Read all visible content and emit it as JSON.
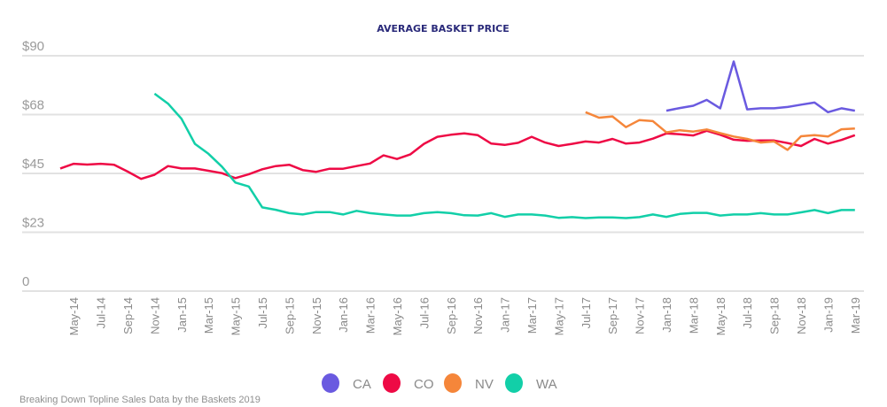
{
  "chart_data": {
    "type": "line",
    "title": "AVERAGE BASKET PRICE",
    "xlabel": "",
    "ylabel": "",
    "ylim": [
      0,
      90
    ],
    "yticks": [
      0,
      22.5,
      45,
      67.5,
      90
    ],
    "ytick_labels": [
      "0",
      "$23",
      "$45",
      "$68",
      "$90"
    ],
    "grid": true,
    "legend_placement": "bottom",
    "x": [
      "Apr-14",
      "May-14",
      "Jun-14",
      "Jul-14",
      "Aug-14",
      "Sep-14",
      "Oct-14",
      "Nov-14",
      "Dec-14",
      "Jan-15",
      "Feb-15",
      "Mar-15",
      "Apr-15",
      "May-15",
      "Jun-15",
      "Jul-15",
      "Aug-15",
      "Sep-15",
      "Oct-15",
      "Nov-15",
      "Dec-15",
      "Jan-16",
      "Feb-16",
      "Mar-16",
      "Apr-16",
      "May-16",
      "Jun-16",
      "Jul-16",
      "Aug-16",
      "Sep-16",
      "Oct-16",
      "Nov-16",
      "Dec-16",
      "Jan-17",
      "Feb-17",
      "Mar-17",
      "Apr-17",
      "May-17",
      "Jun-17",
      "Jul-17",
      "Aug-17",
      "Sep-17",
      "Oct-17",
      "Nov-17",
      "Dec-17",
      "Jan-18",
      "Feb-18",
      "Mar-18",
      "Apr-18",
      "May-18",
      "Jun-18",
      "Jul-18",
      "Aug-18",
      "Sep-18",
      "Oct-18",
      "Nov-18",
      "Dec-18",
      "Jan-19",
      "Feb-19",
      "Mar-19"
    ],
    "xtick_labels": [
      "May-14",
      "Jul-14",
      "Sep-14",
      "Nov-14",
      "Jan-15",
      "Mar-15",
      "May-15",
      "Jul-15",
      "Sep-15",
      "Nov-15",
      "Jan-16",
      "Mar-16",
      "May-16",
      "Jul-16",
      "Sep-16",
      "Nov-16",
      "Jan-17",
      "Mar-17",
      "May-17",
      "Jul-17",
      "Sep-17",
      "Nov-17",
      "Jan-18",
      "Mar-18",
      "May-18",
      "Jul-18",
      "Sep-18",
      "Nov-18",
      "Jan-19",
      "Mar-19"
    ],
    "series": [
      {
        "name": "CA",
        "color": "#6a5ae0",
        "values": [
          null,
          null,
          null,
          null,
          null,
          null,
          null,
          null,
          null,
          null,
          null,
          null,
          null,
          null,
          null,
          null,
          null,
          null,
          null,
          null,
          null,
          null,
          null,
          null,
          null,
          null,
          null,
          null,
          null,
          null,
          null,
          null,
          null,
          null,
          null,
          null,
          null,
          null,
          null,
          null,
          null,
          null,
          null,
          null,
          null,
          69.0,
          70.0,
          70.9,
          73.1,
          69.9,
          87.8,
          69.5,
          69.9,
          69.9,
          70.4,
          71.3,
          72.1,
          68.4,
          69.9,
          69.0
        ]
      },
      {
        "name": "CO",
        "color": "#ee0a45",
        "values": [
          46.9,
          48.7,
          48.4,
          48.7,
          48.3,
          45.7,
          42.9,
          44.5,
          47.8,
          46.9,
          46.9,
          46.0,
          45.1,
          43.2,
          44.7,
          46.6,
          47.8,
          48.3,
          46.3,
          45.6,
          46.8,
          46.8,
          47.8,
          48.8,
          51.9,
          50.5,
          52.3,
          56.3,
          59.0,
          59.8,
          60.3,
          59.6,
          56.4,
          55.9,
          56.7,
          59.0,
          56.8,
          55.5,
          56.3,
          57.2,
          56.8,
          58.2,
          56.4,
          56.8,
          58.3,
          60.3,
          60.0,
          59.5,
          61.3,
          59.8,
          57.9,
          57.5,
          57.6,
          57.6,
          56.6,
          55.5,
          58.2,
          56.4,
          57.8,
          59.6
        ]
      },
      {
        "name": "NV",
        "color": "#f5863a",
        "values": [
          null,
          null,
          null,
          null,
          null,
          null,
          null,
          null,
          null,
          null,
          null,
          null,
          null,
          null,
          null,
          null,
          null,
          null,
          null,
          null,
          null,
          null,
          null,
          null,
          null,
          null,
          null,
          null,
          null,
          null,
          null,
          null,
          null,
          null,
          null,
          null,
          null,
          null,
          null,
          68.4,
          66.3,
          66.8,
          62.7,
          65.4,
          65.0,
          60.7,
          61.5,
          61.0,
          61.8,
          60.4,
          59.1,
          58.2,
          56.8,
          57.2,
          54.0,
          59.2,
          59.6,
          59.1,
          61.9,
          62.2
        ]
      },
      {
        "name": "WA",
        "color": "#12cfa8",
        "values": [
          null,
          null,
          null,
          null,
          null,
          null,
          null,
          75.5,
          71.7,
          65.9,
          56.3,
          52.5,
          47.6,
          41.5,
          40.0,
          32.0,
          31.1,
          29.8,
          29.3,
          30.2,
          30.2,
          29.3,
          30.7,
          29.8,
          29.3,
          28.9,
          28.9,
          29.8,
          30.2,
          29.8,
          29.0,
          28.9,
          29.8,
          28.4,
          29.3,
          29.3,
          28.9,
          28.0,
          28.3,
          27.9,
          28.2,
          28.2,
          27.9,
          28.3,
          29.3,
          28.4,
          29.5,
          29.9,
          29.9,
          28.9,
          29.3,
          29.3,
          29.8,
          29.3,
          29.3,
          30.1,
          31.0,
          29.8,
          31.0,
          31.0
        ]
      }
    ]
  },
  "footer": "Breaking Down Topline Sales Data by the Baskets 2019"
}
